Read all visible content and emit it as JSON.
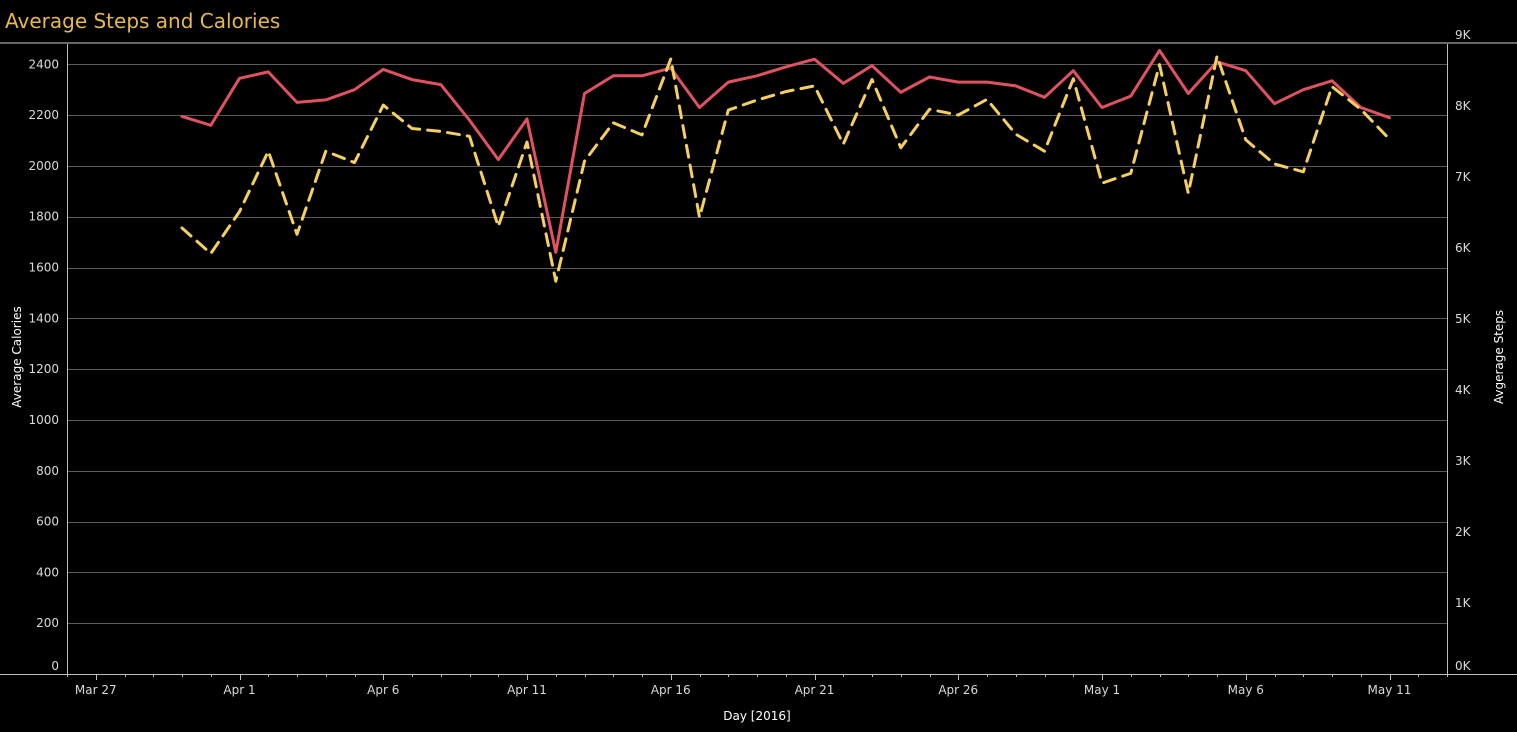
{
  "colors": {
    "background": "#000000",
    "title": "#E6B84E",
    "grid": "#5a5a5a",
    "axis": "#bdbdbd",
    "calories_line": "#E05260",
    "steps_line": "#F5D061"
  },
  "chart_data": {
    "type": "line",
    "title": "Average Steps and Calories",
    "xlabel": "Day [2016]",
    "ylabel_left": "Average Calories",
    "ylabel_right": "Avgerage Steps",
    "x_tick_labels": [
      "Mar 27",
      "Apr 1",
      "Apr 6",
      "Apr 11",
      "Apr 16",
      "Apr 21",
      "Apr 26",
      "May 1",
      "May 6",
      "May 11"
    ],
    "x_tick_dates": [
      "2016-03-27",
      "2016-04-01",
      "2016-04-06",
      "2016-04-11",
      "2016-04-16",
      "2016-04-21",
      "2016-04-26",
      "2016-05-01",
      "2016-05-06",
      "2016-05-11"
    ],
    "xlim": [
      "2016-03-26",
      "2016-05-13"
    ],
    "y_left_ticks": [
      0,
      200,
      400,
      600,
      800,
      1000,
      1200,
      1400,
      1600,
      1800,
      2000,
      2200,
      2400
    ],
    "y_left_tick_labels": [
      "0",
      "200",
      "400",
      "600",
      "800",
      "1000",
      "1200",
      "1400",
      "1600",
      "1800",
      "2000",
      "2200",
      "2400"
    ],
    "y_right_ticks": [
      0,
      1000,
      2000,
      3000,
      4000,
      5000,
      6000,
      7000,
      8000,
      9000
    ],
    "y_right_tick_labels": [
      "0K",
      "1K",
      "2K",
      "3K",
      "4K",
      "5K",
      "6K",
      "7K",
      "8K",
      "9K"
    ],
    "ylim_left": [
      0,
      2480
    ],
    "ylim_right": [
      0,
      8870
    ],
    "grid": true,
    "x": [
      "2016-03-30",
      "2016-03-31",
      "2016-04-01",
      "2016-04-02",
      "2016-04-03",
      "2016-04-04",
      "2016-04-05",
      "2016-04-06",
      "2016-04-07",
      "2016-04-08",
      "2016-04-09",
      "2016-04-10",
      "2016-04-11",
      "2016-04-12",
      "2016-04-13",
      "2016-04-14",
      "2016-04-15",
      "2016-04-16",
      "2016-04-17",
      "2016-04-18",
      "2016-04-19",
      "2016-04-20",
      "2016-04-21",
      "2016-04-22",
      "2016-04-23",
      "2016-04-24",
      "2016-04-25",
      "2016-04-26",
      "2016-04-27",
      "2016-04-28",
      "2016-04-29",
      "2016-04-30",
      "2016-05-01",
      "2016-05-02",
      "2016-05-03",
      "2016-05-04",
      "2016-05-05",
      "2016-05-06",
      "2016-05-07",
      "2016-05-08",
      "2016-05-09",
      "2016-05-10",
      "2016-05-11"
    ],
    "series": [
      {
        "axis": "left",
        "style": "solid",
        "values": [
          2195,
          2160,
          2345,
          2370,
          2250,
          2260,
          2300,
          2380,
          2340,
          2320,
          2180,
          2025,
          2185,
          1660,
          2285,
          2355,
          2355,
          2385,
          2230,
          2330,
          2355,
          2390,
          2420,
          2325,
          2395,
          2290,
          2350,
          2330,
          2330,
          2315,
          2270,
          2375,
          2230,
          2275,
          2455,
          2285,
          2410,
          2375,
          2245,
          2300,
          2335,
          2230,
          2190
        ]
      },
      {
        "axis": "right",
        "style": "dashed",
        "values": [
          6280,
          5920,
          6510,
          7360,
          6190,
          7360,
          7200,
          8010,
          7680,
          7640,
          7570,
          6300,
          7490,
          5530,
          7220,
          7760,
          7590,
          8660,
          6430,
          7940,
          8080,
          8200,
          8280,
          7460,
          8370,
          7410,
          7950,
          7870,
          8090,
          7600,
          7360,
          8380,
          6910,
          7050,
          8580,
          6770,
          8700,
          7520,
          7180,
          7070,
          8270,
          7950,
          7530
        ]
      }
    ]
  }
}
